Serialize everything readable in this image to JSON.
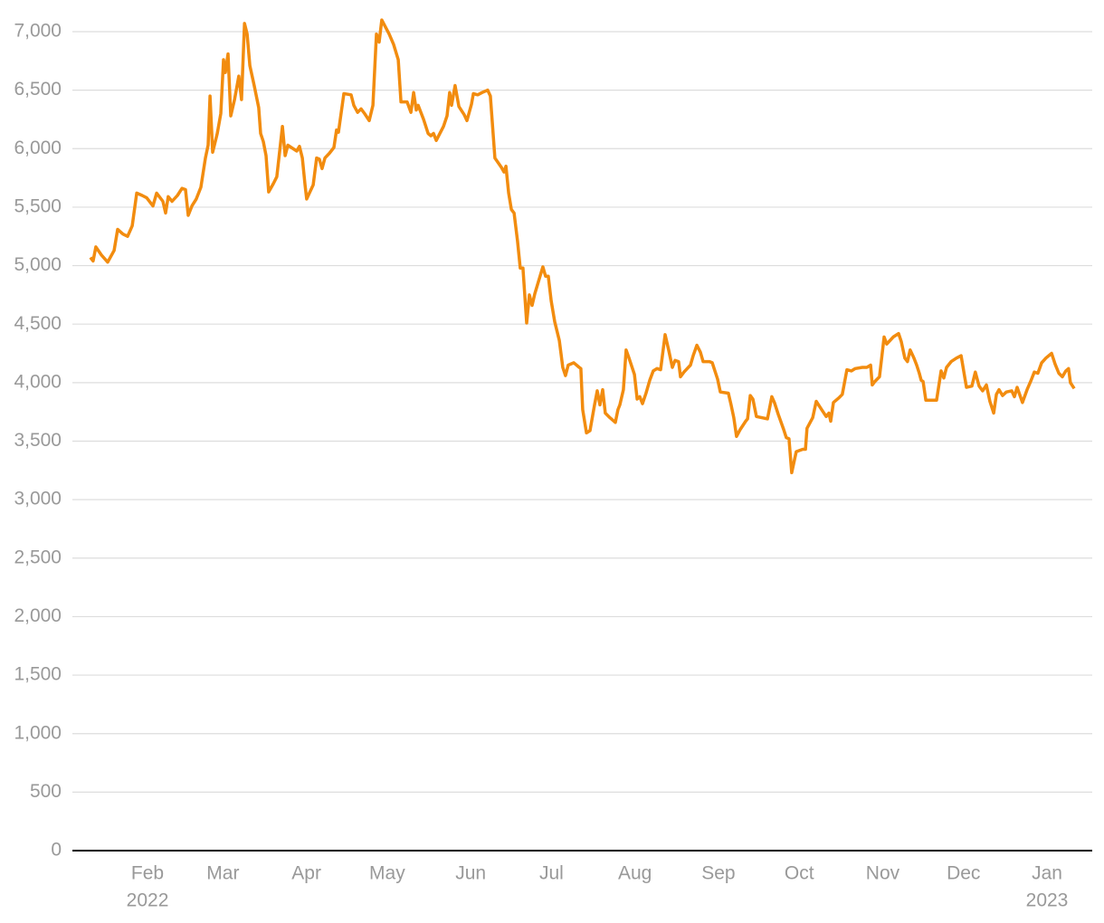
{
  "chart_data": {
    "type": "line",
    "x": [
      9.8,
      10.8,
      11.8,
      13.9,
      16.2,
      18.6,
      19.9,
      21.9,
      23.6,
      25.3,
      27.0,
      29.0,
      30.7,
      33.0,
      34.4,
      36.7,
      37.7,
      38.7,
      40.1,
      42.1,
      43.8,
      45.1,
      46.1,
      47.5,
      49.1,
      50.8,
      52.5,
      53.5,
      54.2,
      55.2,
      56.9,
      58.2,
      59.2,
      59.9,
      60.9,
      61.9,
      63.3,
      64.9,
      65.9,
      67.0,
      68.0,
      69.0,
      70.6,
      72.3,
      73.0,
      74.0,
      75.0,
      76.0,
      77.7,
      79.0,
      81.1,
      82.1,
      83.1,
      84.4,
      86.4,
      87.4,
      88.5,
      89.5,
      90.1,
      91.1,
      92.5,
      93.8,
      94.8,
      95.8,
      96.9,
      98.5,
      100.2,
      101.2,
      101.9,
      103.9,
      106.6,
      107.6,
      109.0,
      110.3,
      111.6,
      113.3,
      114.7,
      116.0,
      117.0,
      118.0,
      120.7,
      122.4,
      124.1,
      125.1,
      127.4,
      128.8,
      129.8,
      130.8,
      131.5,
      133.5,
      135.2,
      136.2,
      137.2,
      138.2,
      140.9,
      142.2,
      143.2,
      143.9,
      145.2,
      146.6,
      148.6,
      149.6,
      151.3,
      152.0,
      153.6,
      155.3,
      157.3,
      158.3,
      160.0,
      162.4,
      163.4,
      164.1,
      165.1,
      166.1,
      167.1,
      168.4,
      169.4,
      170.4,
      171.8,
      172.8,
      173.8,
      174.8,
      177.8,
      178.8,
      179.8,
      180.9,
      182.2,
      183.9,
      185.2,
      186.2,
      187.2,
      189.3,
      191.3,
      191.9,
      192.6,
      194.0,
      195.3,
      197.0,
      198.0,
      199.0,
      200.0,
      201.0,
      202.7,
      204.7,
      205.7,
      206.4,
      207.7,
      208.7,
      209.8,
      211.8,
      212.8,
      213.8,
      214.8,
      216.1,
      217.5,
      218.8,
      220.2,
      221.5,
      223.2,
      224.5,
      225.9,
      226.9,
      228.2,
      228.9,
      230.2,
      232.6,
      233.6,
      235.0,
      236.3,
      237.3,
      239.7,
      240.7,
      242.7,
      243.7,
      246.7,
      247.7,
      248.7,
      249.7,
      251.1,
      253.1,
      253.8,
      254.8,
      255.8,
      257.1,
      259.1,
      261.2,
      262.8,
      263.8,
      265.2,
      267.2,
      268.2,
      269.2,
      270.2,
      271.9,
      274.3,
      275.3,
      275.9,
      278.0,
      279.3,
      281.3,
      283.0,
      284.0,
      284.7,
      285.7,
      287.7,
      289.0,
      290.7,
      292.4,
      293.8,
      296.4,
      298.1,
      299.5,
      300.1,
      301.1,
      302.8,
      304.5,
      305.5,
      307.9,
      309.9,
      310.9,
      312.2,
      313.2,
      314.2,
      315.6,
      316.6,
      317.6,
      318.3,
      319.0,
      320.0,
      324.0,
      325.7,
      326.7,
      327.7,
      329.4,
      331.4,
      333.1,
      335.1,
      337.1,
      338.4,
      339.8,
      341.1,
      342.5,
      343.8,
      345.2,
      346.2,
      347.2,
      348.5,
      349.9,
      351.9,
      352.9,
      353.9,
      355.9,
      357.6,
      358.9,
      360.3,
      361.6,
      363.0,
      364.6,
      366.7,
      368.0,
      369.4,
      370.7,
      372.0,
      373.0,
      373.7,
      375.1
    ],
    "series": [
      {
        "color": "#f28c0f",
        "values": [
          5070,
          5040,
          5160,
          5090,
          5030,
          5130,
          5310,
          5270,
          5250,
          5340,
          5620,
          5600,
          5580,
          5510,
          5620,
          5550,
          5450,
          5590,
          5550,
          5600,
          5660,
          5650,
          5430,
          5510,
          5570,
          5670,
          5920,
          6030,
          6450,
          5970,
          6130,
          6300,
          6760,
          6650,
          6810,
          6280,
          6420,
          6620,
          6420,
          7070,
          6980,
          6710,
          6540,
          6350,
          6130,
          6060,
          5940,
          5630,
          5700,
          5760,
          6190,
          5940,
          6030,
          6010,
          5980,
          6020,
          5920,
          5690,
          5570,
          5620,
          5690,
          5920,
          5910,
          5830,
          5920,
          5960,
          6010,
          6160,
          6140,
          6470,
          6460,
          6370,
          6310,
          6340,
          6300,
          6240,
          6370,
          6980,
          6910,
          7100,
          6980,
          6890,
          6760,
          6400,
          6400,
          6310,
          6480,
          6330,
          6370,
          6250,
          6130,
          6110,
          6130,
          6070,
          6190,
          6280,
          6480,
          6370,
          6540,
          6360,
          6290,
          6240,
          6380,
          6470,
          6460,
          6480,
          6500,
          6450,
          5920,
          5840,
          5800,
          5850,
          5620,
          5480,
          5450,
          5210,
          4980,
          4980,
          4510,
          4750,
          4660,
          4760,
          4990,
          4910,
          4910,
          4700,
          4520,
          4360,
          4130,
          4060,
          4150,
          4170,
          4130,
          4120,
          3770,
          3570,
          3590,
          3810,
          3930,
          3810,
          3940,
          3740,
          3700,
          3660,
          3770,
          3810,
          3940,
          4280,
          4210,
          4070,
          3860,
          3880,
          3820,
          3910,
          4020,
          4100,
          4120,
          4110,
          4410,
          4280,
          4130,
          4190,
          4180,
          4050,
          4090,
          4150,
          4230,
          4320,
          4260,
          4180,
          4180,
          4170,
          4030,
          3920,
          3910,
          3810,
          3700,
          3540,
          3600,
          3670,
          3690,
          3890,
          3860,
          3710,
          3700,
          3690,
          3880,
          3830,
          3730,
          3600,
          3530,
          3520,
          3230,
          3410,
          3430,
          3430,
          3610,
          3700,
          3840,
          3770,
          3710,
          3740,
          3670,
          3830,
          3870,
          3900,
          4110,
          4100,
          4120,
          4130,
          4130,
          4150,
          3980,
          4010,
          4050,
          4390,
          4330,
          4390,
          4420,
          4350,
          4210,
          4180,
          4280,
          4210,
          4150,
          4080,
          4020,
          4010,
          3850,
          3850,
          4100,
          4040,
          4130,
          4180,
          4210,
          4230,
          3960,
          3970,
          4090,
          3970,
          3930,
          3980,
          3840,
          3740,
          3900,
          3940,
          3890,
          3920,
          3930,
          3880,
          3960,
          3830,
          3940,
          4010,
          4090,
          4080,
          4170,
          4210,
          4250,
          4160,
          4080,
          4050,
          4100,
          4120,
          4000,
          3950
        ]
      }
    ],
    "xlim": [
      3.1,
      381.8
    ],
    "xticks": [
      {
        "value": 31,
        "label": "Feb"
      },
      {
        "value": 59,
        "label": "Mar"
      },
      {
        "value": 90,
        "label": "Apr"
      },
      {
        "value": 120,
        "label": "May"
      },
      {
        "value": 151,
        "label": "Jun"
      },
      {
        "value": 181,
        "label": "Jul"
      },
      {
        "value": 212,
        "label": "Aug"
      },
      {
        "value": 243,
        "label": "Sep"
      },
      {
        "value": 273,
        "label": "Oct"
      },
      {
        "value": 304,
        "label": "Nov"
      },
      {
        "value": 334,
        "label": "Dec"
      },
      {
        "value": 365,
        "label": "Jan"
      }
    ],
    "x_year_labels": [
      {
        "value": 31,
        "label": "2022"
      },
      {
        "value": 365,
        "label": "2023"
      }
    ],
    "ylim": [
      0,
      7150
    ],
    "yticks": [
      0,
      500,
      {
        "value": 1000,
        "label": "1,000"
      },
      {
        "value": 1500,
        "label": "1,500"
      },
      {
        "value": 2000,
        "label": "2,000"
      },
      {
        "value": 2500,
        "label": "2,500"
      },
      {
        "value": 3000,
        "label": "3,000"
      },
      {
        "value": 3500,
        "label": "3,500"
      },
      {
        "value": 4000,
        "label": "4,000"
      },
      {
        "value": 4500,
        "label": "4,500"
      },
      {
        "value": 5000,
        "label": "5,000"
      },
      {
        "value": 5500,
        "label": "5,500"
      },
      {
        "value": 6000,
        "label": "6,000"
      },
      {
        "value": 6500,
        "label": "6,500"
      },
      {
        "value": 7000,
        "label": "7,000"
      }
    ],
    "grid": true
  }
}
